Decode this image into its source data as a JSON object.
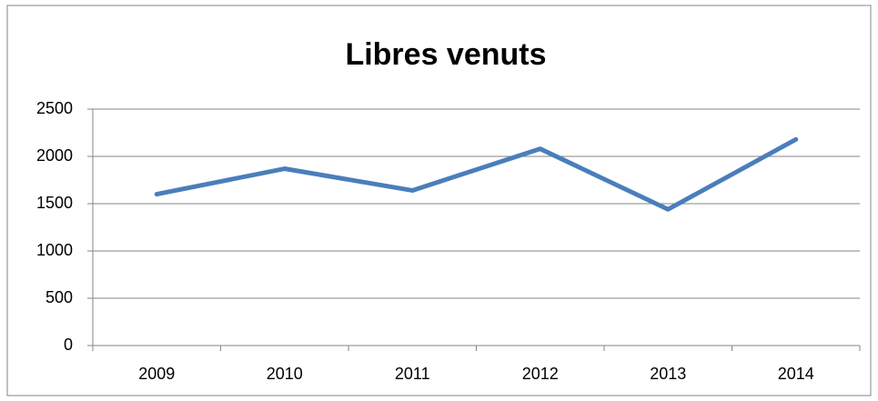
{
  "chart_data": {
    "type": "line",
    "title": "Libres venuts",
    "categories": [
      "2009",
      "2010",
      "2011",
      "2012",
      "2013",
      "2014"
    ],
    "series": [
      {
        "name": "Libres venuts",
        "color": "#4a7ebb",
        "values": [
          1600,
          1870,
          1640,
          2080,
          1440,
          2180
        ]
      }
    ],
    "ylim": [
      0,
      2500
    ],
    "yticks": [
      0,
      500,
      1000,
      1500,
      2000,
      2500
    ],
    "grid": true,
    "legend": false
  }
}
